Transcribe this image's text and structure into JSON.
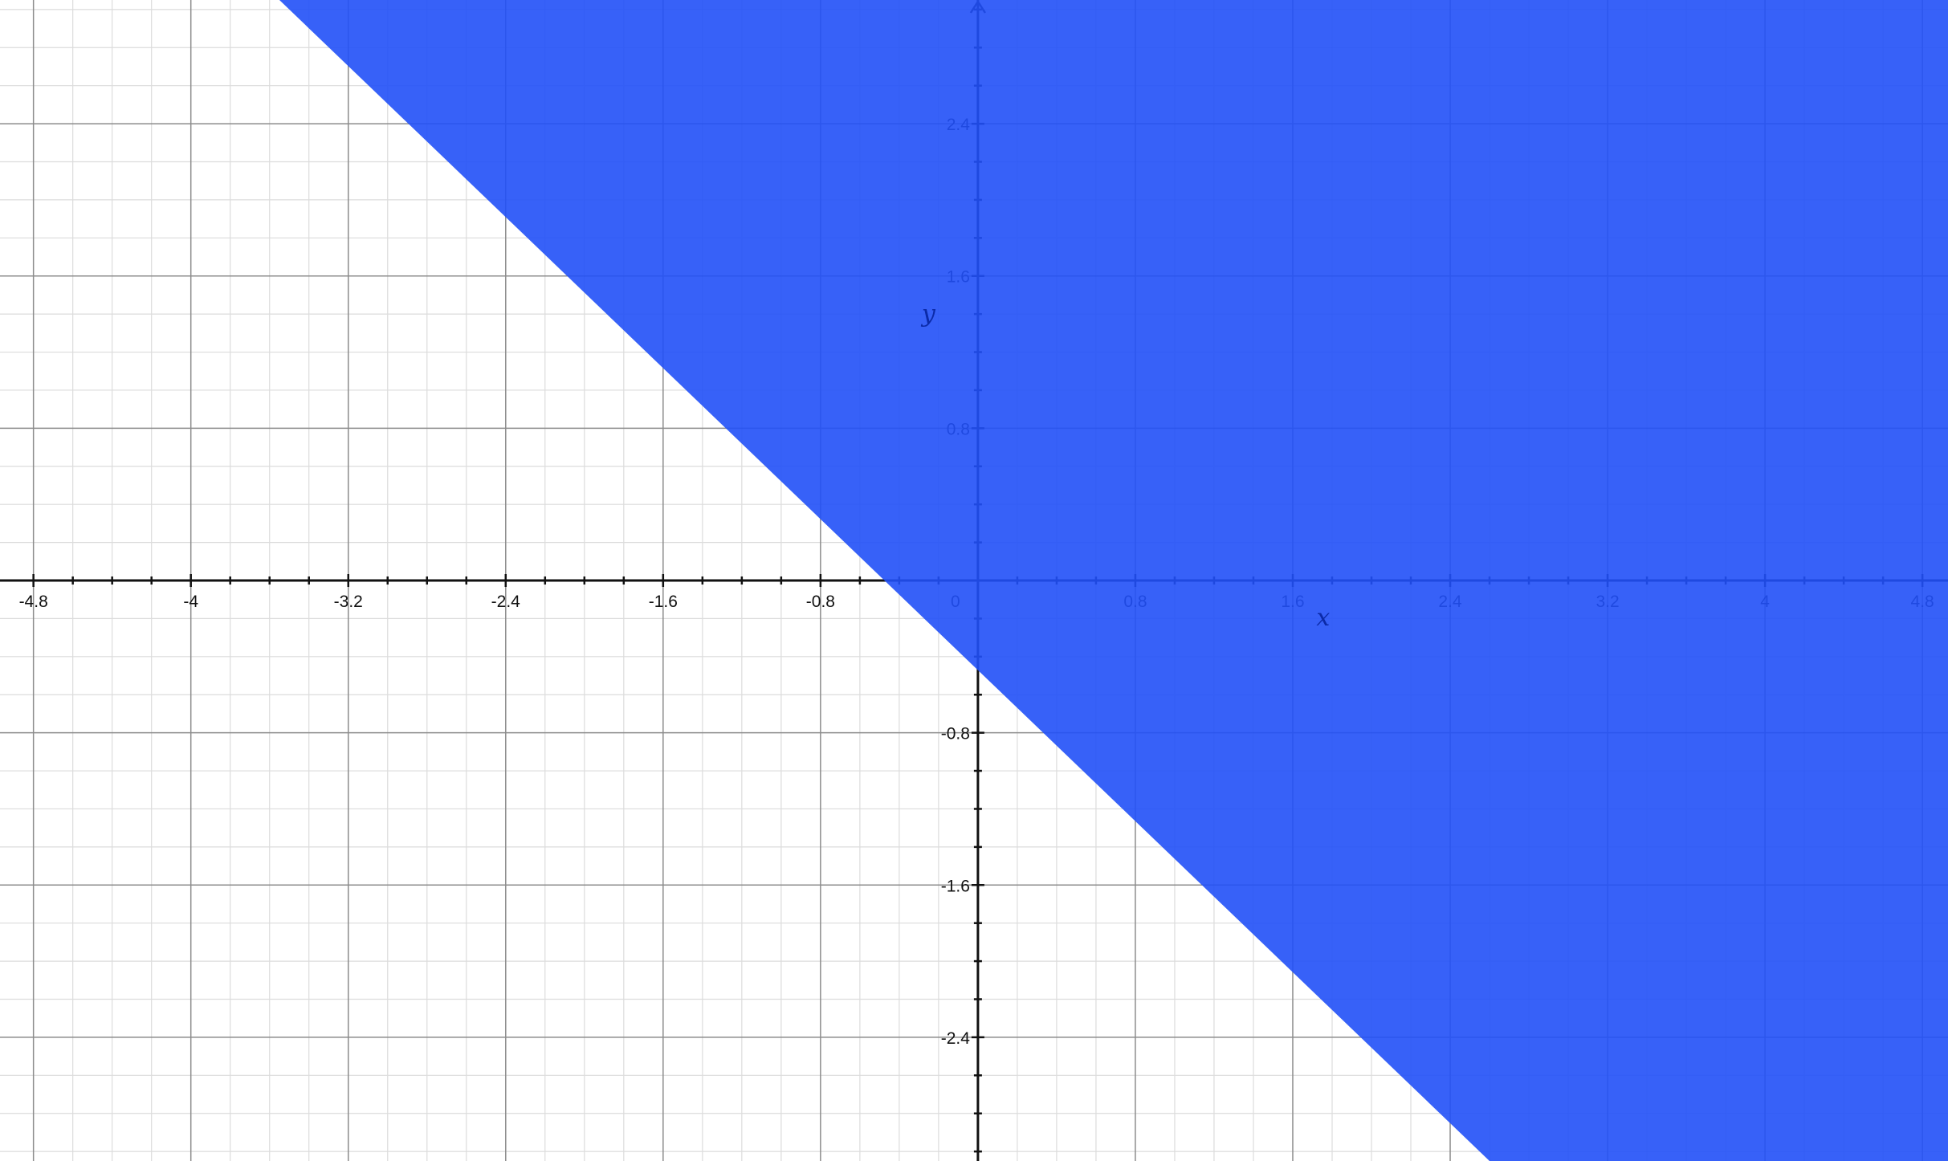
{
  "chart_data": {
    "type": "area",
    "title": "",
    "xlabel": "x",
    "ylabel": "y",
    "xlim": [
      -4.97,
      4.93
    ],
    "ylim": [
      -3.05,
      3.05
    ],
    "x_ticks": [
      -4.8,
      -4,
      -3.2,
      -2.4,
      -1.6,
      -0.8,
      0,
      0.8,
      1.6,
      2.4,
      3.2,
      4,
      4.8
    ],
    "x_tick_labels": [
      "-4.8",
      "-4",
      "-3.2",
      "-2.4",
      "-1.6",
      "-0.8",
      "0",
      "0.8",
      "1.6",
      "2.4",
      "3.2",
      "4",
      "4.8"
    ],
    "y_ticks": [
      2.4,
      1.6,
      0.8,
      -0.8,
      -1.6,
      -2.4
    ],
    "y_tick_labels": [
      "2.4",
      "1.6",
      "0.8",
      "-0.8",
      "-1.6",
      "-2.4"
    ],
    "major_grid_step": 0.8,
    "minor_grid_step": 0.2,
    "grid": true,
    "shaded_region": {
      "description": "half-plane above the boundary line",
      "boundary_points": [
        [
          -3.55,
          3.05
        ],
        [
          2.6,
          -3.05
        ]
      ],
      "intercepts": {
        "x": -0.48,
        "y": -0.48
      },
      "inequality": "above",
      "fill_color": "#2150f7"
    },
    "colors": {
      "fill": "#2150f7",
      "major_grid": "#8c8c8c",
      "minor_grid": "#dcdcdc",
      "axis": "#111111",
      "label_on_fill": "#0b2aa8"
    }
  }
}
